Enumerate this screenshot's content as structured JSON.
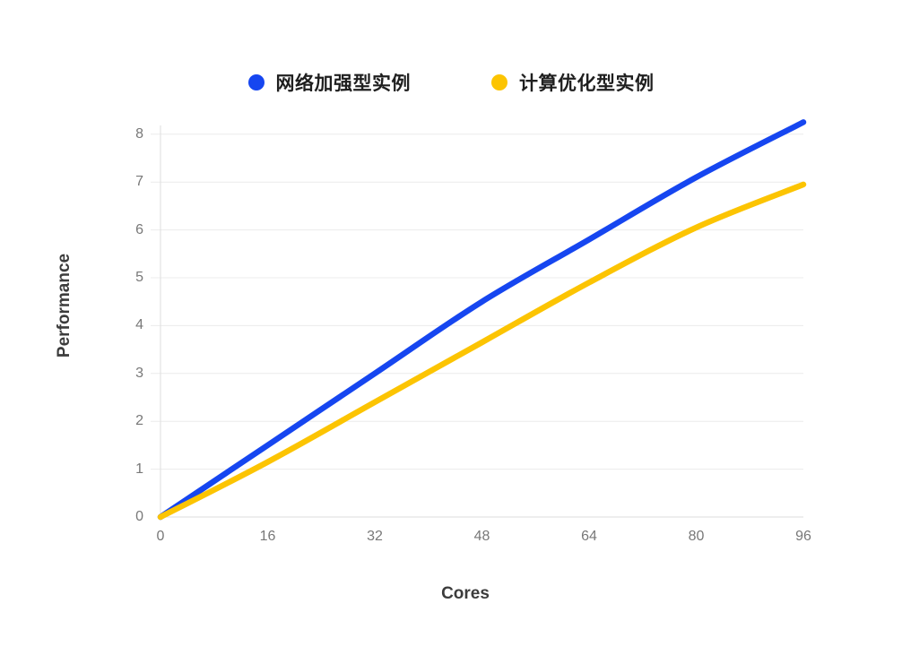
{
  "background": "#ffffff",
  "legend": {
    "position": "top",
    "items": [
      {
        "label": "网络加强型实例",
        "color": "#1646f0"
      },
      {
        "label": "计算优化型实例",
        "color": "#fcc402"
      }
    ]
  },
  "chart_data": {
    "type": "line",
    "title": "",
    "xlabel": "Cores",
    "ylabel": "Performance",
    "x": [
      0,
      16,
      32,
      48,
      64,
      80,
      96
    ],
    "x_tick_labels": [
      "0",
      "16",
      "32",
      "48",
      "64",
      "80",
      "96"
    ],
    "y_tick_labels": [
      "0",
      "1",
      "2",
      "3",
      "4",
      "5",
      "6",
      "7",
      "8"
    ],
    "y_ticks": [
      0,
      1,
      2,
      3,
      4,
      5,
      6,
      7,
      8
    ],
    "xlim": [
      0,
      96
    ],
    "ylim": [
      0,
      8.4
    ],
    "grid": "horizontal",
    "legend_position": "top",
    "line_style": "smooth",
    "series": [
      {
        "name": "网络加强型实例",
        "color": "#1646f0",
        "values": [
          0,
          1.5,
          3.0,
          4.5,
          5.8,
          7.1,
          8.25
        ]
      },
      {
        "name": "计算优化型实例",
        "color": "#fcc402",
        "values": [
          0,
          1.15,
          2.4,
          3.65,
          4.9,
          6.05,
          6.95
        ]
      }
    ],
    "colors": {
      "grid_line": "#ececec",
      "axis_line": "#dedede",
      "tick_text": "#787878",
      "axis_title_text": "#3c3c3c"
    }
  }
}
